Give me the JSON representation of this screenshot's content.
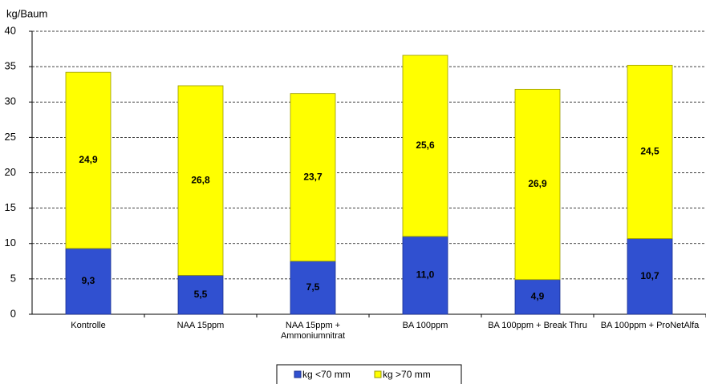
{
  "chart_data": {
    "type": "stacked_bar",
    "y_axis_label": "kg/Baum",
    "categories": [
      "Kontrolle",
      "NAA 15ppm",
      "NAA 15ppm + Ammoniumnitrat",
      "BA 100ppm",
      "BA 100ppm + Break Thru",
      "BA 100ppm + ProNetAlfa"
    ],
    "series": [
      {
        "name": "kg <70 mm",
        "color": "#3050d0",
        "values": [
          9.3,
          5.5,
          7.5,
          11.0,
          4.9,
          10.7
        ],
        "value_labels": [
          "9,3",
          "5,5",
          "7,5",
          "11,0",
          "4,9",
          "10,7"
        ]
      },
      {
        "name": "kg >70 mm",
        "color": "#ffff00",
        "values": [
          24.9,
          26.8,
          23.7,
          25.6,
          26.9,
          24.5
        ],
        "value_labels": [
          "24,9",
          "26,8",
          "23,7",
          "25,6",
          "26,9",
          "24,5"
        ]
      }
    ],
    "ylim": [
      0,
      40
    ],
    "yticks": [
      0,
      5,
      10,
      15,
      20,
      25,
      30,
      35,
      40
    ],
    "grid": true,
    "legend": "bottom"
  }
}
